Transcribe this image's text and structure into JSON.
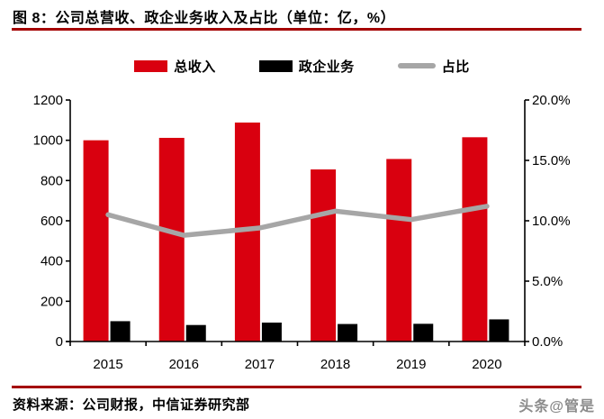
{
  "page": {
    "title": "图 8：公司总营收、政企业务收入及占比（单位：亿，%）",
    "source_note": "资料来源：公司财报，中信证券研究部",
    "watermark": "头条@管是"
  },
  "colors": {
    "bar_total": "#D9000F",
    "bar_gov": "#000000",
    "line_ratio": "#A6A6A6",
    "rule_red": "#A40000",
    "axis": "#000000",
    "watermark_gray": "#8C8C8C"
  },
  "legend": {
    "items": [
      {
        "key": "total-revenue",
        "label": "总收入",
        "type": "bar",
        "color": "#D9000F"
      },
      {
        "key": "gov-enterprise",
        "label": "政企业务",
        "type": "bar",
        "color": "#000000"
      },
      {
        "key": "ratio",
        "label": "占比",
        "type": "line",
        "color": "#A6A6A6"
      }
    ]
  },
  "chart_data": {
    "type": "bar",
    "subtype": "bar-line-combo",
    "title": "公司总营收、政企业务收入及占比",
    "unit": "亿，%",
    "categories": [
      "2015",
      "2016",
      "2017",
      "2018",
      "2019",
      "2020"
    ],
    "series": [
      {
        "name": "总收入",
        "key": "total-revenue",
        "type": "bar",
        "axis": "left",
        "color": "#D9000F",
        "values": [
          1000,
          1012,
          1088,
          855,
          907,
          1015
        ]
      },
      {
        "name": "政企业务",
        "key": "gov-enterprise",
        "type": "bar",
        "axis": "left",
        "color": "#000000",
        "values": [
          101,
          82,
          94,
          87,
          88,
          110
        ]
      },
      {
        "name": "占比",
        "key": "ratio",
        "type": "line",
        "axis": "right",
        "color": "#A6A6A6",
        "values": [
          10.5,
          8.8,
          9.4,
          10.8,
          10.1,
          11.2
        ]
      }
    ],
    "left_axis": {
      "min": 0,
      "max": 1200,
      "step": 200,
      "ticks": [
        "0",
        "200",
        "400",
        "600",
        "800",
        "1000",
        "1200"
      ]
    },
    "right_axis": {
      "min": 0,
      "max": 20,
      "step": 5,
      "ticks": [
        "0.0%",
        "5.0%",
        "10.0%",
        "15.0%",
        "20.0%"
      ]
    },
    "grid": false,
    "legend_position": "top"
  }
}
